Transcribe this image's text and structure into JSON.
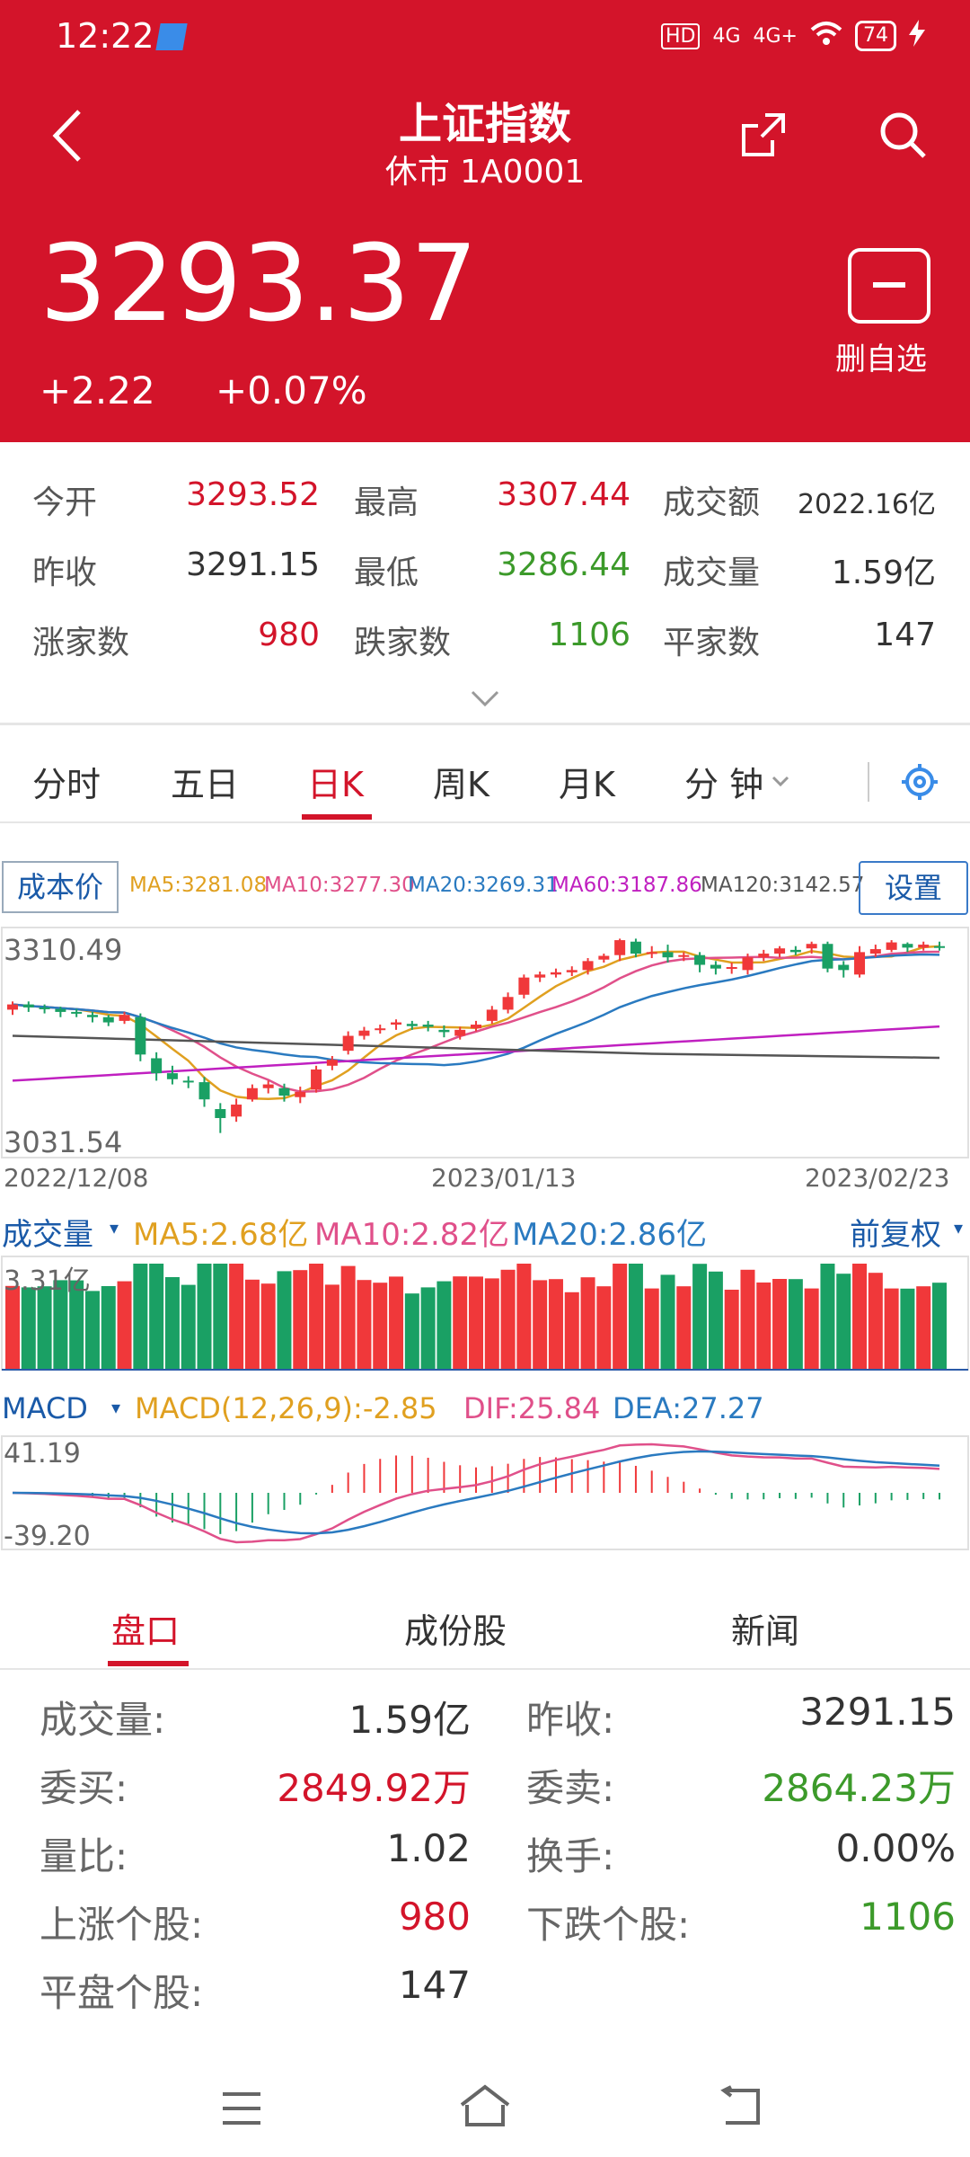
{
  "status": {
    "time": "12:22",
    "net1": "HD",
    "net2": "4G",
    "net3": "4G+",
    "battery": "74"
  },
  "header": {
    "title": "上证指数",
    "subtitle": "休市 1A0001",
    "price": "3293.37",
    "change": "+2.22",
    "change_pct": "+0.07%",
    "remove_label": "删自选"
  },
  "stats": {
    "row1": [
      {
        "label": "今开",
        "value": "3293.52"
      },
      {
        "label": "最高",
        "value": "3307.44"
      },
      {
        "label": "成交额",
        "value": "2022.16亿"
      }
    ],
    "row2": [
      {
        "label": "昨收",
        "value": "3291.15"
      },
      {
        "label": "最低",
        "value": "3286.44"
      },
      {
        "label": "成交量",
        "value": "1.59亿"
      }
    ],
    "row3": [
      {
        "label": "涨家数",
        "value": "980"
      },
      {
        "label": "跌家数",
        "value": "1106"
      },
      {
        "label": "平家数",
        "value": "147"
      }
    ]
  },
  "period_tabs": [
    "分时",
    "五日",
    "日K",
    "周K",
    "月K",
    "分 钟"
  ],
  "active_period": "日K",
  "ma": {
    "cost_label": "成本价",
    "ma5": "MA5:3281.08",
    "ma10": "MA10:3277.30",
    "ma20": "MA20:3269.31",
    "ma60": "MA60:3187.86",
    "ma120": "MA120:3142.57",
    "settings_label": "设置"
  },
  "colors": {
    "up": "#f0383a",
    "down": "#1aa064",
    "ma5": "#e0a020",
    "ma10": "#e0508a",
    "ma20": "#2a7ac0",
    "ma60": "#c020c0",
    "ma120": "#555555"
  },
  "kline": {
    "y_high": "3310.49",
    "y_low": "3031.54",
    "dates": [
      "2022/12/08",
      "2023/01/13",
      "2023/02/23"
    ]
  },
  "volume": {
    "label": "成交量",
    "ma5": "MA5:2.68亿",
    "ma10": "MA10:2.82亿",
    "ma20": "MA20:2.86亿",
    "adjust": "前复权",
    "y_label": "3.31亿"
  },
  "macd": {
    "label": "MACD",
    "value": "MACD(12,26,9):-2.85",
    "dif": "DIF:25.84",
    "dea": "DEA:27.27",
    "y_high": "41.19",
    "y_low": "-39.20"
  },
  "bottom_tabs": [
    "盘口",
    "成份股",
    "新闻"
  ],
  "pankou": [
    [
      {
        "label": "成交量:",
        "value": "1.59亿"
      },
      {
        "label": "昨收:",
        "value": "3291.15"
      }
    ],
    [
      {
        "label": "委买:",
        "value": "2849.92万"
      },
      {
        "label": "委卖:",
        "value": "2864.23万"
      }
    ],
    [
      {
        "label": "量比:",
        "value": "1.02"
      },
      {
        "label": "换手:",
        "value": "0.00%"
      }
    ],
    [
      {
        "label": "上涨个股:",
        "value": "980"
      },
      {
        "label": "下跌个股:",
        "value": "1106"
      }
    ],
    [
      {
        "label": "平盘个股:",
        "value": "147"
      }
    ]
  ],
  "chart_data": {
    "type": "candlestick",
    "ylim": [
      3031.54,
      3310.49
    ],
    "x_ticks": [
      "2022/12/08",
      "2023/01/13",
      "2023/02/23"
    ],
    "candles": [
      [
        3215,
        3222,
        3208,
        3226
      ],
      [
        3222,
        3218,
        3212,
        3226
      ],
      [
        3218,
        3216,
        3210,
        3222
      ],
      [
        3216,
        3212,
        3205,
        3219
      ],
      [
        3212,
        3210,
        3205,
        3216
      ],
      [
        3208,
        3205,
        3198,
        3212
      ],
      [
        3205,
        3198,
        3193,
        3208
      ],
      [
        3200,
        3208,
        3196,
        3212
      ],
      [
        3205,
        3155,
        3146,
        3210
      ],
      [
        3150,
        3130,
        3120,
        3158
      ],
      [
        3130,
        3122,
        3115,
        3140
      ],
      [
        3120,
        3118,
        3110,
        3126
      ],
      [
        3118,
        3095,
        3085,
        3125
      ],
      [
        3082,
        3070,
        3050,
        3090
      ],
      [
        3072,
        3088,
        3065,
        3096
      ],
      [
        3095,
        3110,
        3092,
        3115
      ],
      [
        3110,
        3115,
        3103,
        3120
      ],
      [
        3110,
        3100,
        3092,
        3116
      ],
      [
        3098,
        3105,
        3090,
        3112
      ],
      [
        3108,
        3135,
        3104,
        3140
      ],
      [
        3140,
        3148,
        3134,
        3153
      ],
      [
        3160,
        3180,
        3155,
        3186
      ],
      [
        3180,
        3187,
        3175,
        3192
      ],
      [
        3188,
        3190,
        3183,
        3195
      ],
      [
        3195,
        3198,
        3188,
        3202
      ],
      [
        3196,
        3193,
        3188,
        3200
      ],
      [
        3195,
        3192,
        3186,
        3200
      ],
      [
        3188,
        3185,
        3178,
        3194
      ],
      [
        3180,
        3188,
        3175,
        3192
      ],
      [
        3190,
        3195,
        3186,
        3200
      ],
      [
        3200,
        3215,
        3196,
        3220
      ],
      [
        3215,
        3232,
        3210,
        3238
      ],
      [
        3235,
        3258,
        3230,
        3262
      ],
      [
        3258,
        3262,
        3252,
        3266
      ],
      [
        3262,
        3265,
        3258,
        3270
      ],
      [
        3265,
        3268,
        3260,
        3273
      ],
      [
        3268,
        3280,
        3262,
        3284
      ],
      [
        3282,
        3287,
        3278,
        3290
      ],
      [
        3288,
        3308,
        3280,
        3310
      ],
      [
        3306,
        3290,
        3285,
        3310
      ],
      [
        3292,
        3292,
        3284,
        3300
      ],
      [
        3292,
        3285,
        3278,
        3302
      ],
      [
        3286,
        3288,
        3280,
        3292
      ],
      [
        3288,
        3275,
        3265,
        3292
      ],
      [
        3275,
        3270,
        3262,
        3280
      ],
      [
        3270,
        3272,
        3263,
        3278
      ],
      [
        3268,
        3285,
        3262,
        3290
      ],
      [
        3285,
        3290,
        3280,
        3295
      ],
      [
        3290,
        3297,
        3285,
        3300
      ],
      [
        3295,
        3292,
        3288,
        3300
      ],
      [
        3297,
        3303,
        3290,
        3306
      ],
      [
        3303,
        3270,
        3265,
        3306
      ],
      [
        3275,
        3268,
        3258,
        3280
      ],
      [
        3262,
        3292,
        3258,
        3300
      ],
      [
        3290,
        3296,
        3285,
        3302
      ],
      [
        3295,
        3305,
        3292,
        3308
      ],
      [
        3303,
        3298,
        3292,
        3305
      ],
      [
        3298,
        3302,
        3294,
        3306
      ],
      [
        3300,
        3298,
        3294,
        3306
      ]
    ]
  }
}
